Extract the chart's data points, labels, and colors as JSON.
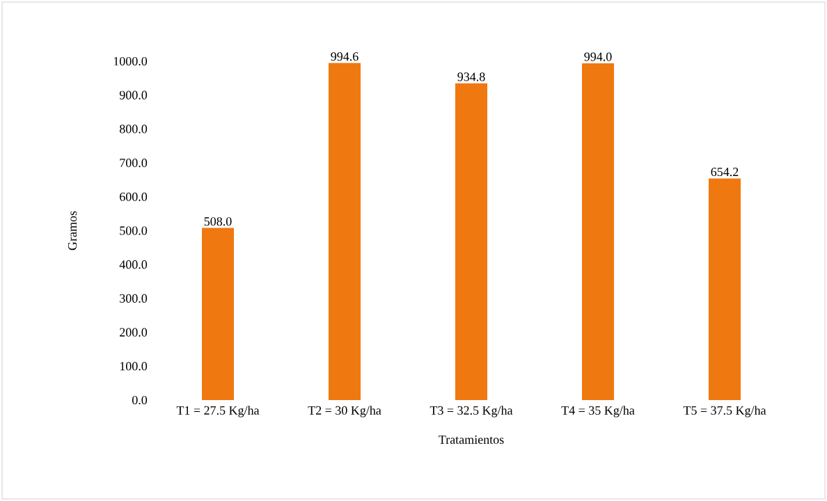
{
  "chart_data": {
    "type": "bar",
    "xlabel": "Tratamientos",
    "ylabel": "Gramos",
    "categories": [
      "T1 = 27.5 Kg/ha",
      "T2 = 30 Kg/ha",
      "T3 = 32.5 Kg/ha",
      "T4 = 35 Kg/ha",
      "T5 = 37.5 Kg/ha"
    ],
    "values": [
      508.0,
      994.6,
      934.8,
      994.0,
      654.2
    ],
    "color": "#f07810",
    "ylim": [
      0,
      1000
    ],
    "yticks": [
      {
        "value": 0,
        "label": "0.0"
      },
      {
        "value": 100,
        "label": "100.0"
      },
      {
        "value": 200,
        "label": "200.0"
      },
      {
        "value": 300,
        "label": "300.0"
      },
      {
        "value": 400,
        "label": "400.0"
      },
      {
        "value": 500,
        "label": "500.0"
      },
      {
        "value": 600,
        "label": "600.0"
      },
      {
        "value": 700,
        "label": "700.0"
      },
      {
        "value": 800,
        "label": "800.0"
      },
      {
        "value": 900,
        "label": "900.0"
      },
      {
        "value": 1000,
        "label": "1000.0"
      }
    ],
    "value_labels": [
      "508.0",
      "994.6",
      "934.8",
      "994.0",
      "654.2"
    ],
    "grid": false
  }
}
